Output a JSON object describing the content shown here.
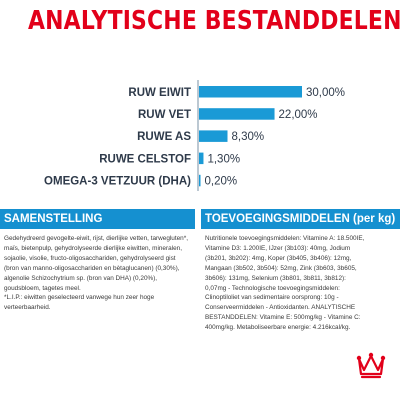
{
  "title": "ANALYTISCHE BESTANDDELEN",
  "colors": {
    "accent_red": "#e2001a",
    "bar_blue": "#1a9ad6",
    "header_blue": "#1590d0",
    "label_text": "#2e3a4a",
    "body_text": "#3a3a3a",
    "divider": "#8fa3b5"
  },
  "chart_data": {
    "type": "bar",
    "orientation": "horizontal",
    "categories": [
      "RUW EIWIT",
      "RUW VET",
      "RUWE AS",
      "RUWE CELSTOF",
      "OMEGA-3 VETZUUR (DHA)"
    ],
    "values": [
      30.0,
      22.0,
      8.3,
      1.3,
      0.2
    ],
    "value_labels": [
      "30,00%",
      "22,00%",
      "8,30%",
      "1,30%",
      "0,20%"
    ],
    "xlim": [
      0,
      30
    ],
    "grid": false,
    "legend": "none"
  },
  "sections": {
    "composition": {
      "header": "SAMENSTELLING",
      "paragraphs": [
        "Gedehydreerd gevogelte-eiwit, rijst, dierlijke vetten, tarwegluten*, maïs, bietenpulp, gehydrolyseerde dierlijke eiwitten, mineralen, sojaolie, visolie, fructo-oligosacchariden, gehydrolyseerd gist (bron van manno-oligosacchariden en bètaglucanen) (0,30%), algenolie Schizochytrium sp. (bron van DHA) (0,20%), goudsbloem, tagetes meel.",
        "*L.I.P.: eiwitten geselecteerd vanwege hun zeer hoge verteerbaarheid."
      ]
    },
    "additives": {
      "header": "TOEVOEGINGSMIDDELEN (per kg)",
      "paragraphs": [
        "Nutritionele toevoegingsmiddelen: Vitamine A: 18.500IE, Vitamine D3: 1.200IE, IJzer (3b103): 40mg, Jodium (3b201, 3b202): 4mg, Koper (3b405, 3b406): 12mg, Mangaan (3b502, 3b504): 52mg, Zink (3b603, 3b605, 3b606): 131mg, Selenium (3b801, 3b811, 3b812): 0,07mg - Technologische toevoegingsmiddelen: Clinoptiloliet van sedimentaire oorsprong: 10g - Conserveermiddelen - Antioxidanten. ANALYTISCHE BESTANDDELEN: Vitamine E: 500mg/kg - Vitamine C: 400mg/kg. Metaboliseerbare energie: 4.216kcal/kg."
      ]
    }
  }
}
